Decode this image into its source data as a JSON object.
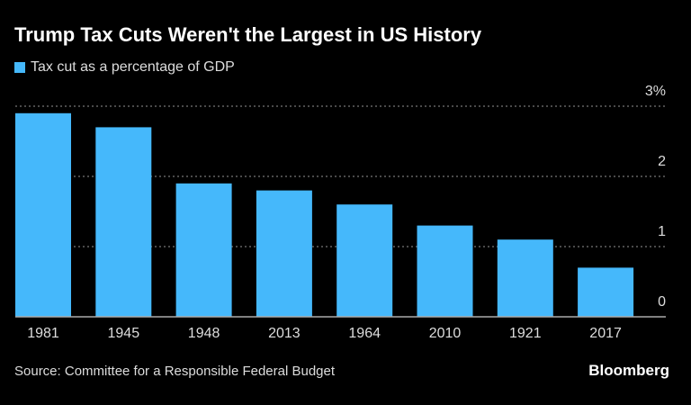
{
  "chart_data": {
    "type": "bar",
    "title": "Trump Tax Cuts Weren't the Largest in US History",
    "categories": [
      "1981",
      "1945",
      "1948",
      "2013",
      "1964",
      "2010",
      "1921",
      "2017"
    ],
    "series": [
      {
        "name": "Tax cut as a percentage of GDP",
        "values": [
          2.9,
          2.7,
          1.9,
          1.8,
          1.6,
          1.3,
          1.1,
          0.7
        ],
        "color": "#45b8fb"
      }
    ],
    "ylim": [
      0,
      3
    ],
    "yticks": [
      0,
      1,
      2,
      3
    ],
    "ytick_labels": [
      "0",
      "1",
      "2",
      "3%"
    ],
    "y_axis_position": "right",
    "grid": true,
    "legend_position": "top-left"
  },
  "source": "Source: Committee for a Responsible Federal Budget",
  "brand": "Bloomberg"
}
